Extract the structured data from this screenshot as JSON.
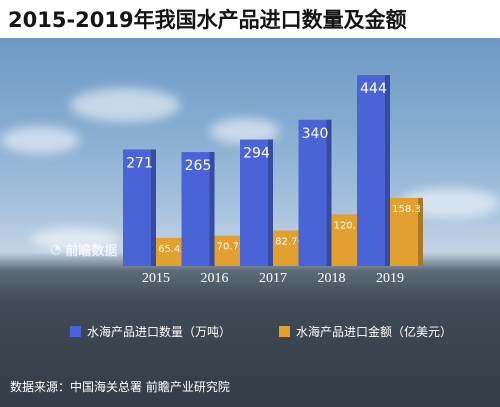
{
  "chart_data": {
    "type": "bar",
    "title": "2015-2019年我国水产品进口数量及金额",
    "categories": [
      "2015",
      "2016",
      "2017",
      "2018",
      "2019"
    ],
    "series": [
      {
        "name": "水海产品进口数量（万吨）",
        "values": [
          271,
          265,
          294,
          340,
          444
        ],
        "labels": [
          "271",
          "265",
          "294",
          "340",
          "444"
        ],
        "color": "#4a64d8"
      },
      {
        "name": "水海产品进口金额（亿美元）",
        "values": [
          65.45,
          70.72,
          82.7,
          120.1,
          158.3
        ],
        "labels": [
          "65.45",
          "70.72",
          "82.70",
          "120.1",
          "158.3"
        ],
        "color": "#e2a030"
      }
    ],
    "legend": "bottom"
  },
  "source_text": "数据来源：中国海关总署 前瞻产业研究院",
  "watermark_text": "前瞻数据"
}
